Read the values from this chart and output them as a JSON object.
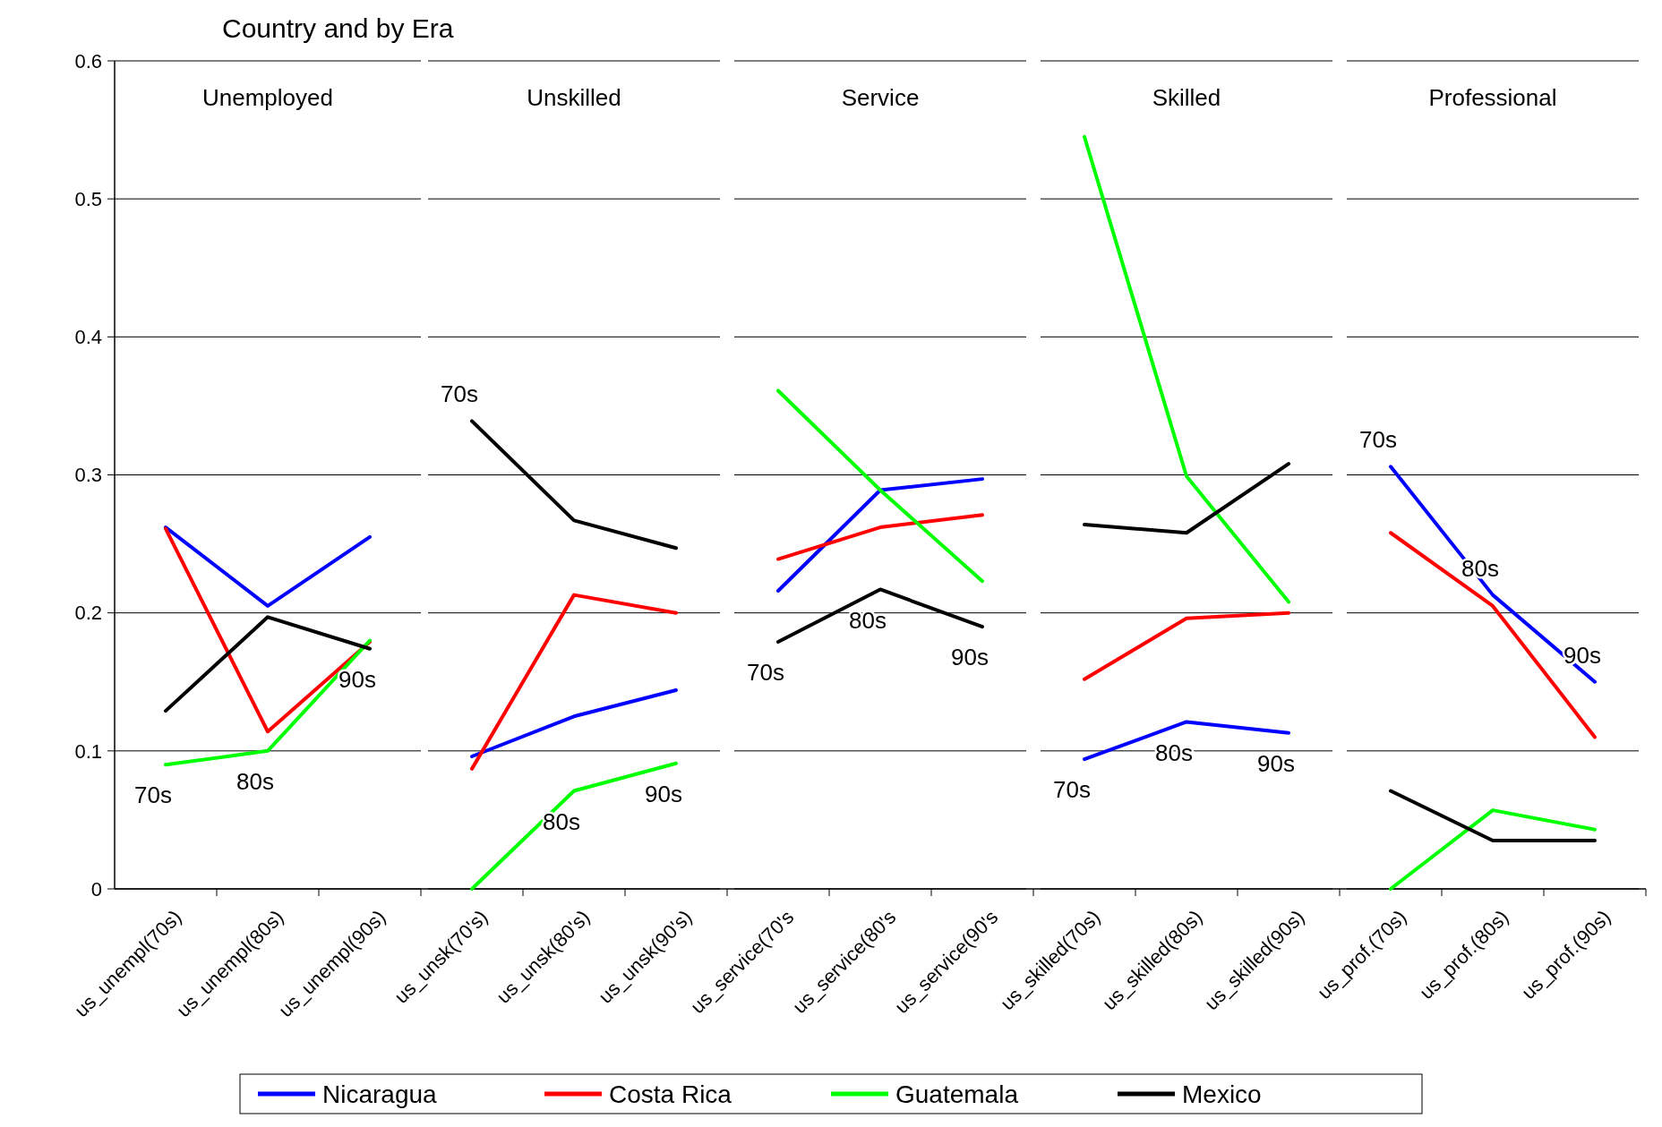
{
  "chart_data": [
    {
      "type": "line",
      "title": "Unemployed",
      "categories": [
        "us_unempl(70s)",
        "us_unempl(80s)",
        "us_unempl(90s)"
      ],
      "ylim": [
        0,
        0.6
      ],
      "yticks": [
        0,
        0.1,
        0.2,
        0.3,
        0.4,
        0.5,
        0.6
      ],
      "grid": "y",
      "legend": "bottom",
      "line_style": "solid",
      "marker": "none",
      "series": [
        {
          "name": "Nicaragua",
          "color": "#0000ff",
          "values": [
            0.262,
            0.205,
            0.255
          ]
        },
        {
          "name": "Costa Rica",
          "color": "#ff0000",
          "values": [
            0.261,
            0.114,
            0.179
          ]
        },
        {
          "name": "Guatemala",
          "color": "#00ff00",
          "values": [
            0.09,
            0.1,
            0.18
          ]
        },
        {
          "name": "Mexico",
          "color": "#000000",
          "values": [
            0.129,
            0.197,
            0.174
          ]
        }
      ],
      "subtitle": "Country and by Era",
      "annotations": [
        "70s",
        "80s",
        "90s"
      ]
    },
    {
      "type": "line",
      "title": "Unskilled",
      "categories": [
        "us_unsk(70's)",
        "us_unsk(80's)",
        "us_unsk(90's)"
      ],
      "ylim": [
        0,
        0.6
      ],
      "yticks": [
        0,
        0.1,
        0.2,
        0.3,
        0.4,
        0.5,
        0.6
      ],
      "grid": "y",
      "tick_labels": "x",
      "line_style": "solid",
      "marker": "none",
      "series": [
        {
          "color": "#0000ff",
          "values": [
            0.096,
            0.125,
            0.144
          ]
        },
        {
          "color": "#ff0000",
          "values": [
            0.087,
            0.213,
            0.2
          ]
        },
        {
          "color": "#00ff00",
          "values": [
            0.0,
            0.071,
            0.091
          ]
        },
        {
          "color": "#000000",
          "values": [
            0.339,
            0.267,
            0.247
          ]
        }
      ],
      "annotations": [
        "70s",
        "80s",
        "90s"
      ]
    },
    {
      "type": "line",
      "title": "Service",
      "categories": [
        "us_service(70's",
        "us_service(80's",
        "us_service(90's"
      ],
      "ylim": [
        0,
        0.6
      ],
      "yticks": [
        0,
        0.1,
        0.2,
        0.3,
        0.4,
        0.5,
        0.6
      ],
      "grid": "y",
      "tick_labels": "x",
      "line_style": "solid",
      "marker": "none",
      "series": [
        {
          "color": "#0000ff",
          "values": [
            0.216,
            0.289,
            0.297
          ]
        },
        {
          "color": "#ff0000",
          "values": [
            0.239,
            0.262,
            0.271
          ]
        },
        {
          "color": "#00ff00",
          "values": [
            0.361,
            0.289,
            0.223
          ]
        },
        {
          "color": "#000000",
          "values": [
            0.179,
            0.217,
            0.19
          ]
        }
      ],
      "annotations": [
        "70s",
        "80s",
        "90s"
      ]
    },
    {
      "type": "line",
      "title": "Skilled",
      "categories": [
        "us_skilled(70s)",
        "us_skilled(80s)",
        "us_skilled(90s)"
      ],
      "ylim": [
        0,
        0.6
      ],
      "yticks": [
        0,
        0.1,
        0.2,
        0.3,
        0.4,
        0.5,
        0.6
      ],
      "grid": "y",
      "tick_labels": "x",
      "line_style": "solid",
      "marker": "none",
      "series": [
        {
          "color": "#0000ff",
          "values": [
            0.094,
            0.121,
            0.113
          ]
        },
        {
          "color": "#ff0000",
          "values": [
            0.152,
            0.196,
            0.2
          ]
        },
        {
          "color": "#00ff00",
          "values": [
            0.545,
            0.299,
            0.208
          ]
        },
        {
          "color": "#000000",
          "values": [
            0.264,
            0.258,
            0.308
          ]
        }
      ],
      "annotations": [
        "70s",
        "80s",
        "90s"
      ]
    },
    {
      "type": "line",
      "title": "Professional",
      "categories": [
        "us_prof.(70s)",
        "us_prof.(80s)",
        "us_prof.(90s)"
      ],
      "ylim": [
        0,
        0.6
      ],
      "yticks": [
        0,
        0.1,
        0.2,
        0.3,
        0.4,
        0.5,
        0.6
      ],
      "grid": "y",
      "tick_labels": "x",
      "line_style": "solid",
      "marker": "none",
      "series": [
        {
          "color": "#0000ff",
          "values": [
            0.306,
            0.213,
            0.15
          ]
        },
        {
          "color": "#ff0000",
          "values": [
            0.258,
            0.205,
            0.11
          ]
        },
        {
          "color": "#00ff00",
          "values": [
            0.0,
            0.057,
            0.043
          ]
        },
        {
          "color": "#000000",
          "values": [
            0.071,
            0.035,
            0.035
          ]
        }
      ],
      "annotations": [
        "70s",
        "80s",
        "90s"
      ]
    }
  ]
}
